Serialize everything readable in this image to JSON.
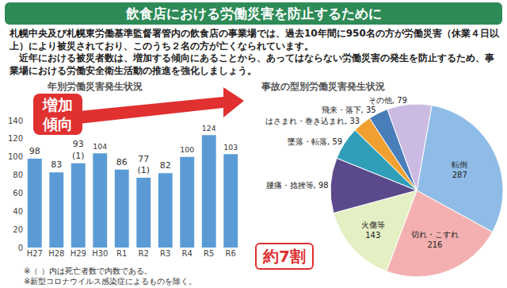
{
  "header": {
    "title": "飲食店における労働災害を防止するために"
  },
  "paragraphs": [
    "札幌中央及び札幌東労働基準監督署管内の飲食店の事業場では、過去10年間に950名の方が労働災害（休業４日以上）により被災されており、このうち２名の方が亡くなられています。",
    "近年における被災者数は、増加する傾向にあることから、あってはならない労働災害の発生を防止するため、事業場における労働安全衛生活動の推進を強化しましょう。"
  ],
  "chart_data": [
    {
      "type": "bar",
      "title": "年別労働災害発生状況",
      "categories": [
        "H27",
        "H28",
        "H29",
        "H30",
        "R1",
        "R2",
        "R3",
        "R4",
        "R5",
        "R6"
      ],
      "values": [
        98,
        83,
        93,
        104,
        86,
        77,
        82,
        100,
        124,
        103
      ],
      "color": "#5b9bd5",
      "ylim": [
        0,
        140
      ],
      "yticks": [
        0,
        20,
        40,
        60,
        80,
        100,
        120,
        140
      ],
      "grid": false,
      "data_labels": true,
      "annotations": [
        {
          "category": "H29",
          "text": "(1)"
        },
        {
          "category": "R2",
          "text": "(1)"
        }
      ],
      "notes": [
        "※（ ）内は死亡者数で内数である。",
        "※新型コロナウイルス感染症によるものを除く。"
      ]
    },
    {
      "type": "pie",
      "title": "事故の型別労働災害発生状況",
      "categories": [
        "転倒",
        "切れ・こすれ",
        "火傷等",
        "腰痛・捻挫等",
        "墜落・転落",
        "はさまれ・巻き込まれ",
        "飛来・落下",
        "その他"
      ],
      "values": [
        287,
        216,
        143,
        98,
        59,
        33,
        35,
        79
      ],
      "value_labels": [
        "転倒\n287",
        "切れ・こすれ\n216",
        "火傷等\n143",
        "腰痛・捻挫等, 98",
        "墜落・転落, 59",
        "はさまれ・巻き込まれ, 33",
        "飛来・落下, 35",
        "その他, 79"
      ],
      "colors": [
        "#8fbce6",
        "#f4b0b0",
        "#e4efc4",
        "#5b4a8b",
        "#2f9fb8",
        "#f0a030",
        "#4a7ebb",
        "#cbbbe3"
      ],
      "data_labels": true
    }
  ],
  "callouts": {
    "trend": "増加傾向",
    "share": "約7割"
  }
}
